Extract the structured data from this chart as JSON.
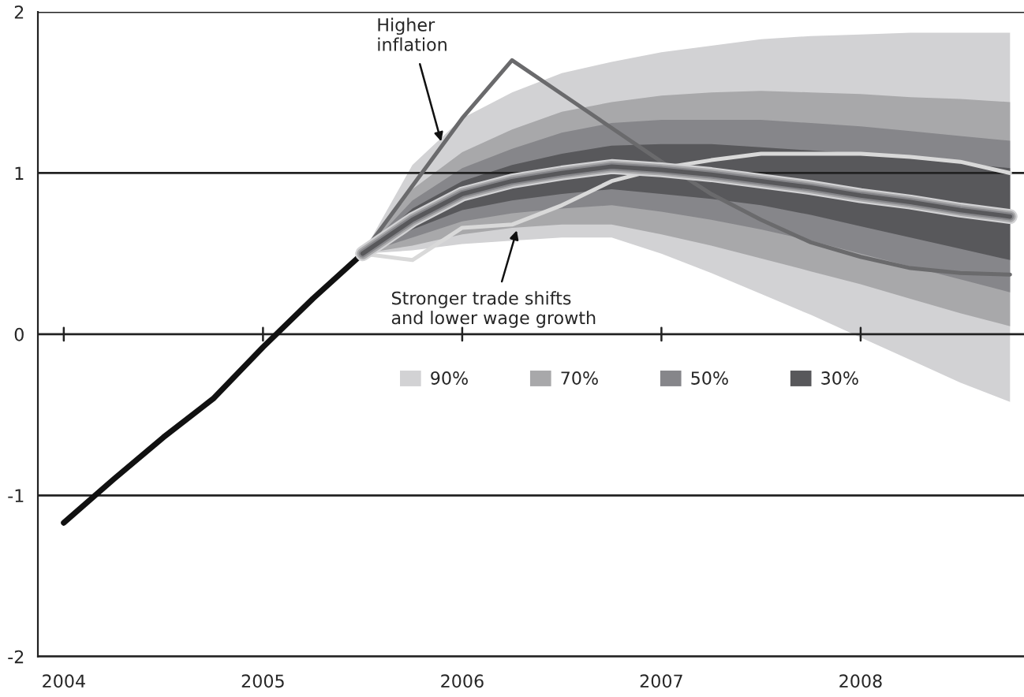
{
  "chart_data": {
    "type": "line",
    "xlim": [
      2003.87,
      2008.82
    ],
    "xticks": [
      2004,
      2005,
      2006,
      2007,
      2008
    ],
    "ylim": [
      -2,
      2
    ],
    "yticks": [
      -2,
      -1,
      0,
      1,
      2
    ],
    "grid": "y",
    "legend": "center",
    "series": [
      {
        "name": "90%",
        "color": "#d2d2d4",
        "x": [
          2005.5,
          2005.75,
          2006,
          2006.25,
          2006.5,
          2006.75,
          2007,
          2007.25,
          2007.5,
          2007.75,
          2008,
          2008.25,
          2008.5,
          2008.75
        ],
        "values": [
          0.5,
          0.71,
          0.87,
          0.95,
          1.0,
          1.04,
          1.02,
          0.99,
          0.95,
          0.91,
          0.86,
          0.82,
          0.77,
          0.73
        ],
        "upper": [
          0.5,
          1.05,
          1.34,
          1.5,
          1.62,
          1.69,
          1.75,
          1.79,
          1.83,
          1.85,
          1.86,
          1.87,
          1.87,
          1.87
        ],
        "lower": [
          0.5,
          0.52,
          0.56,
          0.58,
          0.6,
          0.6,
          0.5,
          0.38,
          0.25,
          0.12,
          -0.02,
          -0.16,
          -0.3,
          -0.42
        ]
      },
      {
        "name": "70%",
        "color": "#a8a8aa",
        "x": [
          2005.5,
          2005.75,
          2006,
          2006.25,
          2006.5,
          2006.75,
          2007,
          2007.25,
          2007.5,
          2007.75,
          2008,
          2008.25,
          2008.5,
          2008.75
        ],
        "values": [
          0.5,
          0.71,
          0.87,
          0.95,
          1.0,
          1.04,
          1.02,
          0.99,
          0.95,
          0.91,
          0.86,
          0.82,
          0.77,
          0.73
        ],
        "upper": [
          0.5,
          0.9,
          1.13,
          1.27,
          1.38,
          1.44,
          1.48,
          1.5,
          1.51,
          1.5,
          1.49,
          1.47,
          1.46,
          1.44
        ],
        "lower": [
          0.5,
          0.55,
          0.62,
          0.66,
          0.68,
          0.68,
          0.62,
          0.55,
          0.47,
          0.39,
          0.31,
          0.22,
          0.13,
          0.05
        ]
      },
      {
        "name": "50%",
        "color": "#86868a",
        "x": [
          2005.5,
          2005.75,
          2006,
          2006.25,
          2006.5,
          2006.75,
          2007,
          2007.25,
          2007.5,
          2007.75,
          2008,
          2008.25,
          2008.5,
          2008.75
        ],
        "values": [
          0.5,
          0.71,
          0.87,
          0.95,
          1.0,
          1.04,
          1.02,
          0.99,
          0.95,
          0.91,
          0.86,
          0.82,
          0.77,
          0.73
        ],
        "upper": [
          0.5,
          0.83,
          1.03,
          1.15,
          1.25,
          1.31,
          1.33,
          1.33,
          1.33,
          1.31,
          1.29,
          1.26,
          1.23,
          1.2
        ],
        "lower": [
          0.5,
          0.6,
          0.7,
          0.75,
          0.78,
          0.8,
          0.76,
          0.71,
          0.65,
          0.58,
          0.5,
          0.42,
          0.34,
          0.26
        ]
      },
      {
        "name": "30%",
        "color": "#58585b",
        "x": [
          2005.5,
          2005.75,
          2006,
          2006.25,
          2006.5,
          2006.75,
          2007,
          2007.25,
          2007.5,
          2007.75,
          2008,
          2008.25,
          2008.5,
          2008.75
        ],
        "values": [
          0.5,
          0.71,
          0.87,
          0.95,
          1.0,
          1.04,
          1.02,
          0.99,
          0.95,
          0.91,
          0.86,
          0.82,
          0.77,
          0.73
        ],
        "upper": [
          0.5,
          0.78,
          0.95,
          1.05,
          1.12,
          1.17,
          1.18,
          1.18,
          1.16,
          1.14,
          1.12,
          1.09,
          1.06,
          1.03
        ],
        "lower": [
          0.5,
          0.65,
          0.77,
          0.83,
          0.87,
          0.9,
          0.87,
          0.84,
          0.8,
          0.74,
          0.67,
          0.6,
          0.53,
          0.46
        ]
      },
      {
        "color": "#d9d9d9",
        "x": [
          2005.5,
          2005.75,
          2006,
          2006.25,
          2006.5,
          2006.75,
          2007,
          2007.25,
          2007.5,
          2007.75,
          2008,
          2008.25,
          2008.5,
          2008.75
        ],
        "values": [
          0.5,
          0.46,
          0.66,
          0.68,
          0.8,
          0.95,
          1.03,
          1.08,
          1.12,
          1.12,
          1.12,
          1.1,
          1.07,
          1.0
        ]
      },
      {
        "color": "#6a6a6c",
        "x": [
          2005.5,
          2005.75,
          2006,
          2006.25,
          2006.5,
          2006.75,
          2007,
          2007.25,
          2007.5,
          2007.75,
          2008,
          2008.25,
          2008.5,
          2008.75
        ],
        "values": [
          0.5,
          0.92,
          1.34,
          1.7,
          1.49,
          1.28,
          1.07,
          0.87,
          0.71,
          0.57,
          0.48,
          0.41,
          0.38,
          0.37
        ]
      },
      {
        "color": "#111111",
        "x": [
          2004,
          2004.25,
          2004.5,
          2004.75,
          2005,
          2005.25,
          2005.5
        ],
        "values": [
          -1.17,
          -0.9,
          -0.64,
          -0.4,
          -0.08,
          0.22,
          0.5
        ]
      }
    ],
    "annotations": [
      {
        "text": "Higher\ninflation",
        "x": 2005.9,
        "y": 1.17
      },
      {
        "text": "Stronger trade shifts\nand lower wage growth",
        "x": 2006.28,
        "y": 0.67
      }
    ]
  }
}
